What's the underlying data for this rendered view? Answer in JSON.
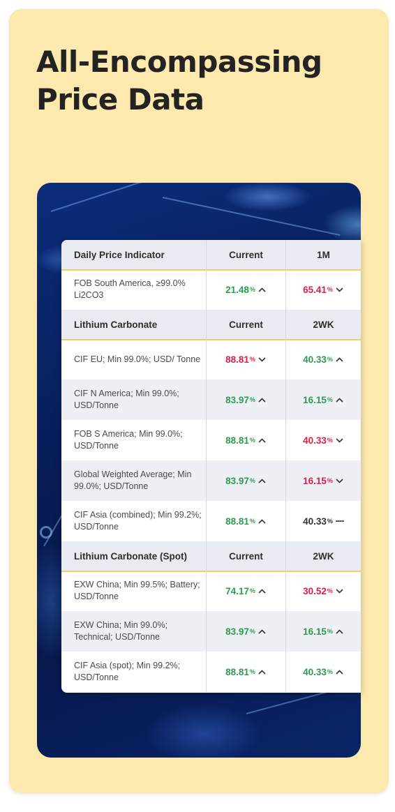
{
  "headline": "All-Encompassing Price Data",
  "colors": {
    "up": "#2e9b4f",
    "down": "#d81f4b",
    "flat": "#333333",
    "card_bg": "#fde8ad",
    "header_accent": "#f3cc6a"
  },
  "sections": [
    {
      "title": "Daily Price Indicator",
      "col2": "Current",
      "col3": "1M",
      "rows": [
        {
          "label": "FOB South America, ≥99.0% Li2CO3",
          "current": {
            "value": "21.48",
            "unit": "%",
            "trend": "up"
          },
          "change": {
            "value": "65.41",
            "unit": "%",
            "trend": "down"
          }
        }
      ]
    },
    {
      "title": "Lithium Carbonate",
      "col2": "Current",
      "col3": "2WK",
      "rows": [
        {
          "label": "CIF EU; Min 99.0%; USD/ Tonne",
          "current": {
            "value": "88.81",
            "unit": "%",
            "trend": "down"
          },
          "change": {
            "value": "40.33",
            "unit": "%",
            "trend": "up"
          }
        },
        {
          "label": "CIF N America; Min 99.0%; USD/Tonne",
          "current": {
            "value": "83.97",
            "unit": "%",
            "trend": "up"
          },
          "change": {
            "value": "16.15",
            "unit": "%",
            "trend": "up"
          }
        },
        {
          "label": "FOB S America; Min 99.0%; USD/Tonne",
          "current": {
            "value": "88.81",
            "unit": "%",
            "trend": "up"
          },
          "change": {
            "value": "40.33",
            "unit": "%",
            "trend": "down"
          }
        },
        {
          "label": "Global Weighted Average; Min 99.0%; USD/Tonne",
          "current": {
            "value": "83.97",
            "unit": "%",
            "trend": "up"
          },
          "change": {
            "value": "16.15",
            "unit": "%",
            "trend": "down"
          }
        },
        {
          "label": "CIF Asia (combined); Min 99.2%; USD/Tonne",
          "current": {
            "value": "88.81",
            "unit": "%",
            "trend": "up"
          },
          "change": {
            "value": "40.33",
            "unit": "%",
            "trend": "flat"
          }
        }
      ]
    },
    {
      "title": "Lithium Carbonate (Spot)",
      "col2": "Current",
      "col3": "2WK",
      "rows": [
        {
          "label": "EXW China; Min 99.5%; Battery; USD/Tonne",
          "current": {
            "value": "74.17",
            "unit": "%",
            "trend": "up"
          },
          "change": {
            "value": "30.52",
            "unit": "%",
            "trend": "down"
          }
        },
        {
          "label": "EXW China; Min 99.0%; Technical; USD/Tonne",
          "current": {
            "value": "83.97",
            "unit": "%",
            "trend": "up"
          },
          "change": {
            "value": "16.15",
            "unit": "%",
            "trend": "up"
          }
        },
        {
          "label": "CIF Asia (spot); Min 99.2%; USD/Tonne",
          "current": {
            "value": "88.81",
            "unit": "%",
            "trend": "up"
          },
          "change": {
            "value": "40.33",
            "unit": "%",
            "trend": "up"
          }
        }
      ]
    }
  ]
}
